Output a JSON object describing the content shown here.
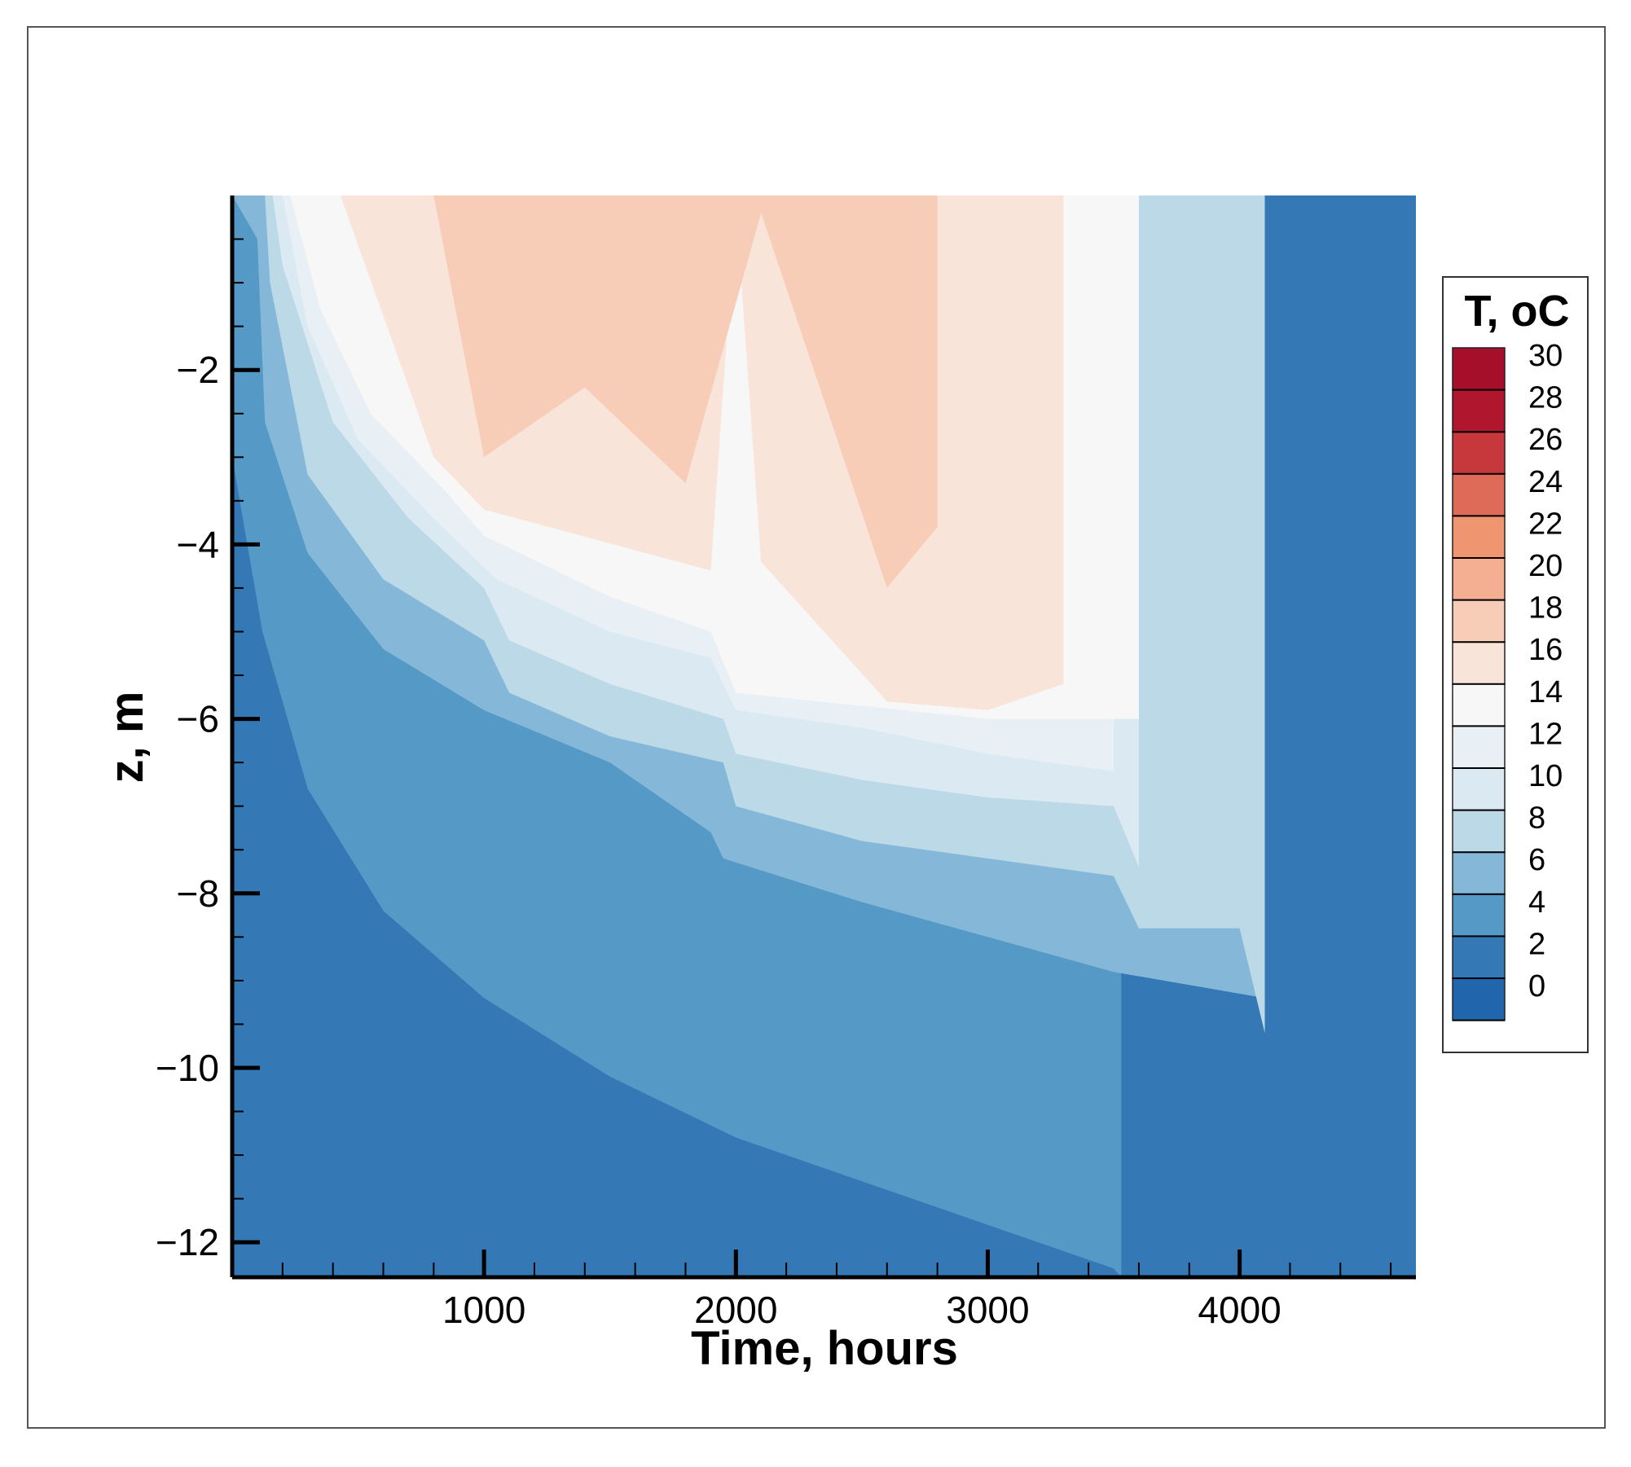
{
  "chart_data": {
    "type": "heatmap",
    "subtype": "filled-contour",
    "xlabel": "Time, hours",
    "ylabel": "z, m",
    "xlim": [
      0,
      4700
    ],
    "ylim": [
      -12.4,
      0
    ],
    "x_ticks": [
      1000,
      2000,
      3000,
      4000
    ],
    "x_tick_labels": [
      "1000",
      "2000",
      "3000",
      "4000"
    ],
    "y_ticks": [
      -2,
      -4,
      -6,
      -8,
      -10,
      -12
    ],
    "y_tick_labels": [
      "−2",
      "−4",
      "−6",
      "−8",
      "−10",
      "−12"
    ],
    "grid": false,
    "legend": {
      "title": "T, oC",
      "placement": "right",
      "levels": [
        0,
        2,
        4,
        6,
        8,
        10,
        12,
        14,
        16,
        18,
        20,
        22,
        24,
        26,
        28,
        30
      ],
      "labels": [
        "0",
        "2",
        "4",
        "6",
        "8",
        "10",
        "12",
        "14",
        "16",
        "18",
        "20",
        "22",
        "24",
        "26",
        "28",
        "30"
      ],
      "colors": [
        "#2166ac",
        "#3478b5",
        "#5599c6",
        "#85b8d8",
        "#bcd9e8",
        "#dbe9f2",
        "#e9f0f5",
        "#f7f7f7",
        "#f9e4da",
        "#f8cdb8",
        "#f4ae91",
        "#ef9670",
        "#dd6b58",
        "#c7383d",
        "#b0172f",
        "#a50f2a"
      ]
    },
    "contours": [
      {
        "level": 4,
        "color": "#5599c6",
        "x": [
          0,
          120,
          300,
          600,
          1000,
          1500,
          2000,
          2500,
          3000,
          3300,
          3500,
          3530
        ],
        "y": [
          -3.0,
          -5.0,
          -6.8,
          -8.2,
          -9.2,
          -10.1,
          -10.8,
          -11.3,
          -11.8,
          -12.1,
          -12.3,
          -12.4
        ]
      },
      {
        "level": 6,
        "color": "#85b8d8",
        "x": [
          0,
          100,
          130,
          300,
          600,
          1000,
          1500,
          1900,
          1950,
          2500,
          3000,
          3500,
          4100
        ],
        "y": [
          0,
          -0.5,
          -2.6,
          -4.1,
          -5.2,
          -5.9,
          -6.5,
          -7.3,
          -7.6,
          -8.1,
          -8.5,
          -8.9,
          -9.2
        ]
      },
      {
        "level": 8,
        "color": "#bcd9e8",
        "x": [
          130,
          150,
          300,
          600,
          1000,
          1100,
          1500,
          1950,
          2000,
          2500,
          3000,
          3500,
          3600,
          4000,
          4100
        ],
        "y": [
          0,
          -1.0,
          -3.2,
          -4.4,
          -5.1,
          -5.7,
          -6.2,
          -6.5,
          -7.0,
          -7.4,
          -7.6,
          -7.8,
          -8.4,
          -8.4,
          -9.6
        ]
      },
      {
        "level": 10,
        "color": "#dbe9f2",
        "x": [
          160,
          200,
          400,
          700,
          1000,
          1100,
          1500,
          1950,
          2000,
          2500,
          3000,
          3500,
          3600
        ],
        "y": [
          0,
          -0.8,
          -2.6,
          -3.7,
          -4.5,
          -5.1,
          -5.6,
          -6.0,
          -6.4,
          -6.7,
          -6.9,
          -7.0,
          -7.7
        ]
      },
      {
        "level": 12,
        "color": "#e9f0f5",
        "x": [
          200,
          300,
          500,
          800,
          1050,
          1500,
          1900,
          2000,
          2500,
          3000,
          3500
        ],
        "y": [
          0,
          -1.5,
          -2.8,
          -3.7,
          -4.4,
          -5.0,
          -5.3,
          -5.9,
          -6.1,
          -6.4,
          -6.6
        ]
      },
      {
        "level": 14,
        "color": "#f7f7f7",
        "x": [
          230,
          350,
          550,
          850,
          1000,
          1500,
          1900,
          2000,
          3000,
          3600
        ],
        "y": [
          0,
          -1.3,
          -2.5,
          -3.4,
          -3.9,
          -4.6,
          -5.0,
          -5.7,
          -6.0,
          -6.0
        ]
      },
      {
        "level": 16,
        "color": "#f9e4da",
        "x": [
          430,
          800,
          1000,
          1900,
          2000,
          2100,
          2600,
          3000,
          3300
        ],
        "y": [
          0,
          -3.0,
          -3.6,
          -4.3,
          -0.1,
          -4.2,
          -5.8,
          -5.9,
          -5.6
        ]
      },
      {
        "level": 18,
        "color": "#f8cdb8",
        "x": [
          800,
          1000,
          1400,
          1800,
          2100,
          2600,
          2800
        ],
        "y": [
          0,
          -3.0,
          -2.2,
          -3.3,
          -0.2,
          -4.5,
          -3.8
        ]
      }
    ]
  }
}
